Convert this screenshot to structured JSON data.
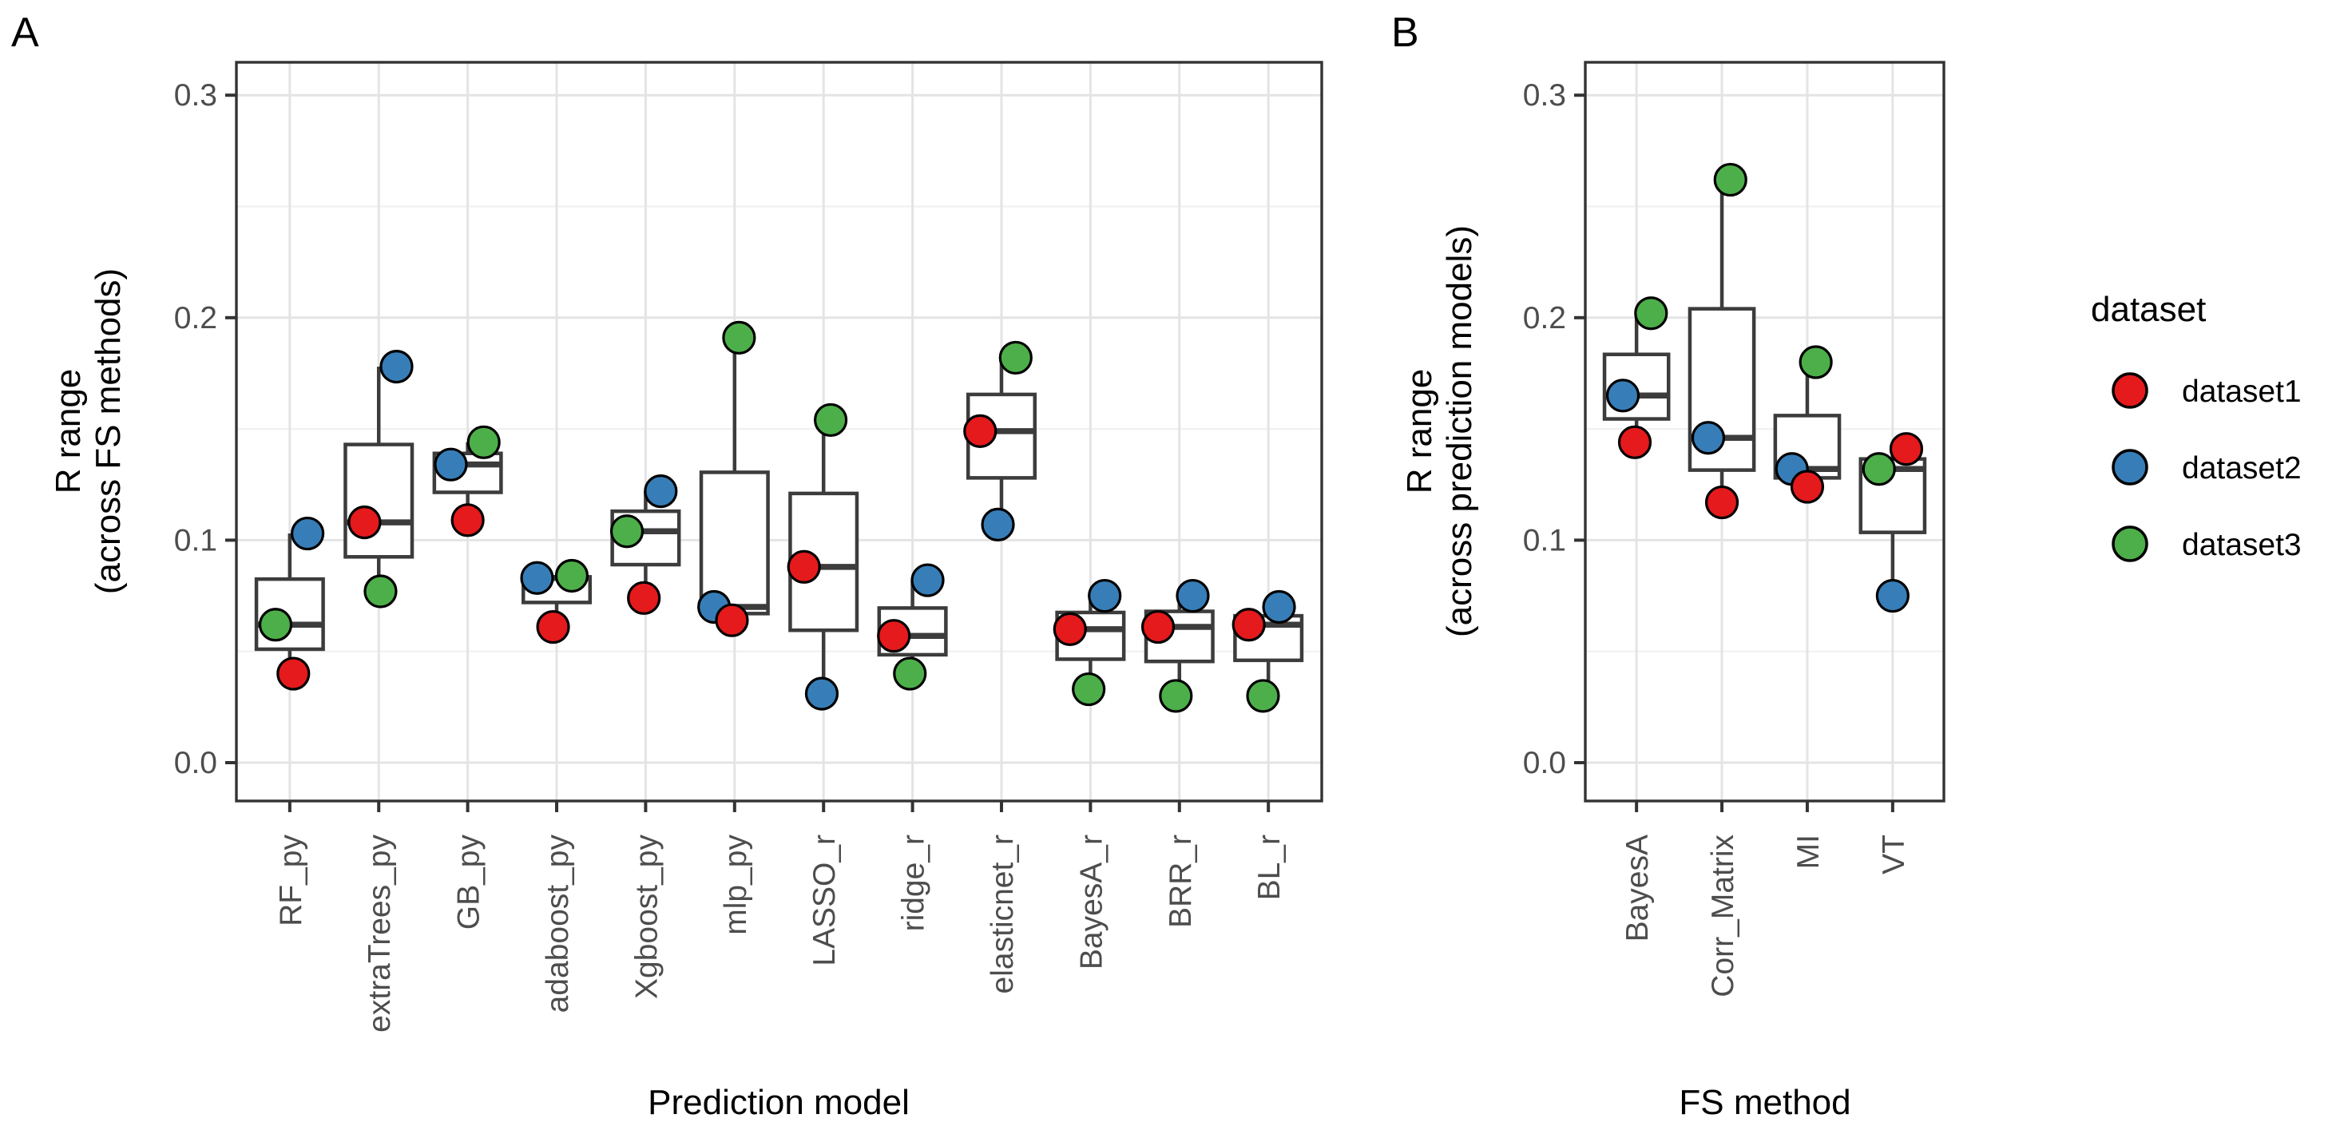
{
  "figure": {
    "background": "#ffffff",
    "panel_a_letter": "A",
    "panel_b_letter": "B"
  },
  "legend": {
    "title": "dataset",
    "position": "right",
    "items": [
      {
        "label": "dataset1",
        "color": "#E41A1C"
      },
      {
        "label": "dataset2",
        "color": "#377EB8"
      },
      {
        "label": "dataset3",
        "color": "#4DAF4A"
      }
    ]
  },
  "chart_data": [
    {
      "type": "boxplot-with-points",
      "panel_label": "A",
      "title": "",
      "xlabel": "Prediction model",
      "ylabel": "R range (across FS methods)",
      "ylabel_lines": [
        "R range",
        "(across FS methods)"
      ],
      "ylim": [
        -0.017,
        0.315
      ],
      "yticks": [
        0.0,
        0.1,
        0.2,
        0.3
      ],
      "ytick_labels": [
        "0.0",
        "0.1",
        "0.2",
        "0.3"
      ],
      "yticks_minor": [
        0.05,
        0.15,
        0.25
      ],
      "grid": "major-and-minor, vertical line per category",
      "legend_shown": false,
      "categories": [
        "RF_py",
        "extraTrees_py",
        "GB_py",
        "adaboost_py",
        "Xgboost_py",
        "mlp_py",
        "LASSO_r",
        "ridge_r",
        "elasticnet_r",
        "BayesA_r",
        "BRR_r",
        "BL_r"
      ],
      "series": [
        {
          "name": "dataset1",
          "color": "#E41A1C",
          "values": [
            0.04,
            0.108,
            0.109,
            0.061,
            0.074,
            0.064,
            0.088,
            0.057,
            0.149,
            0.06,
            0.061,
            0.062
          ],
          "jitter": [
            0.04,
            -0.16,
            0.0,
            -0.04,
            -0.02,
            -0.03,
            -0.22,
            -0.21,
            -0.24,
            -0.23,
            -0.24,
            -0.22
          ]
        },
        {
          "name": "dataset2",
          "color": "#377EB8",
          "values": [
            0.103,
            0.178,
            0.134,
            0.083,
            0.122,
            0.07,
            0.031,
            0.082,
            0.107,
            0.075,
            0.075,
            0.07
          ],
          "jitter": [
            0.2,
            0.2,
            -0.19,
            -0.22,
            0.17,
            -0.23,
            -0.02,
            0.17,
            -0.04,
            0.16,
            0.15,
            0.12
          ]
        },
        {
          "name": "dataset3",
          "color": "#4DAF4A",
          "values": [
            0.062,
            0.077,
            0.144,
            0.084,
            0.104,
            0.191,
            0.154,
            0.04,
            0.182,
            0.033,
            0.03,
            0.03
          ],
          "jitter": [
            -0.16,
            0.02,
            0.18,
            0.17,
            -0.21,
            0.05,
            0.08,
            -0.03,
            0.16,
            -0.02,
            -0.04,
            -0.06
          ]
        }
      ],
      "boxplot_rule": "n=3 per box: median = middle value, q1 = mean(min,median), q3 = mean(median,max), whiskers to min/max"
    },
    {
      "type": "boxplot-with-points",
      "panel_label": "B",
      "title": "",
      "xlabel": "FS method",
      "ylabel": "R range (across prediction models)",
      "ylabel_lines": [
        "R range",
        "(across prediction models)"
      ],
      "ylim": [
        -0.017,
        0.315
      ],
      "yticks": [
        0.0,
        0.1,
        0.2,
        0.3
      ],
      "ytick_labels": [
        "0.0",
        "0.1",
        "0.2",
        "0.3"
      ],
      "yticks_minor": [
        0.05,
        0.15,
        0.25
      ],
      "grid": "major-and-minor, vertical line per category",
      "legend_shown": true,
      "categories": [
        "BayesA",
        "Corr_Matrix",
        "MI",
        "VT"
      ],
      "series": [
        {
          "name": "dataset1",
          "color": "#E41A1C",
          "values": [
            0.144,
            0.117,
            0.124,
            0.141
          ],
          "jitter": [
            -0.02,
            0.0,
            0.0,
            0.16
          ]
        },
        {
          "name": "dataset2",
          "color": "#377EB8",
          "values": [
            0.165,
            0.146,
            0.132,
            0.075
          ],
          "jitter": [
            -0.16,
            -0.16,
            -0.18,
            0.0
          ]
        },
        {
          "name": "dataset3",
          "color": "#4DAF4A",
          "values": [
            0.202,
            0.262,
            0.18,
            0.132
          ],
          "jitter": [
            0.17,
            0.1,
            0.1,
            -0.16
          ]
        }
      ],
      "boxplot_rule": "n=3 per box: median = middle value, q1 = mean(min,median), q3 = mean(median,max), whiskers to min/max"
    }
  ]
}
